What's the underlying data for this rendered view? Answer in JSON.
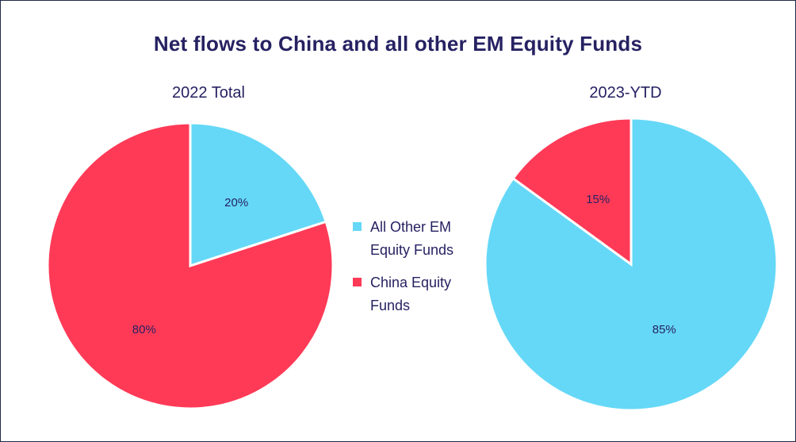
{
  "chart_data": {
    "type": "pie",
    "title": "Net flows to China and all other EM Equity Funds",
    "series_labels": [
      "All Other EM Equity Funds",
      "China Equity Funds"
    ],
    "colors": {
      "All Other EM Equity Funds": "#65D8F7",
      "China Equity Funds": "#FF3A57"
    },
    "legend_position": "center",
    "charts": [
      {
        "subtitle": "2022 Total",
        "slices": [
          {
            "label": "All Other EM Equity Funds",
            "value": 20,
            "display": "20%"
          },
          {
            "label": "China Equity Funds",
            "value": 80,
            "display": "80%"
          }
        ]
      },
      {
        "subtitle": "2023-YTD",
        "slices": [
          {
            "label": "All Other EM Equity Funds",
            "value": 85,
            "display": "85%"
          },
          {
            "label": "China Equity Funds",
            "value": 15,
            "display": "15%"
          }
        ]
      }
    ],
    "legend": [
      {
        "label_line1": "All Other EM",
        "label_line2": "Equity Funds",
        "color": "#65D8F7"
      },
      {
        "label_line1": "China Equity",
        "label_line2": "Funds",
        "color": "#FF3A57"
      }
    ]
  }
}
